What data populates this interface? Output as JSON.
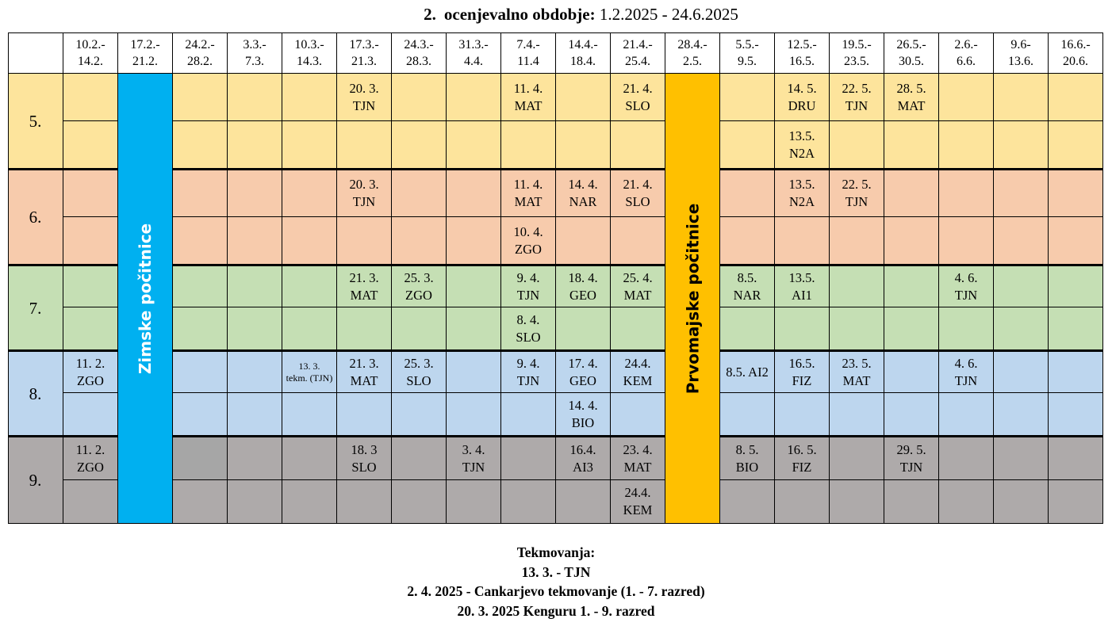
{
  "title": {
    "number": "2.",
    "label": "ocenjevalno obdobje:",
    "range": "1.2.2025 - 24.6.2025"
  },
  "weeks": [
    "10.2.-\n14.2.",
    "17.2.-\n21.2.",
    "24.2.-\n28.2.",
    "3.3.-\n7.3.",
    "10.3.-\n14.3.",
    "17.3.-\n21.3.",
    "24.3.-\n28.3.",
    "31.3.-\n4.4.",
    "7.4.-\n11.4",
    "14.4.-\n18.4.",
    "21.4.-\n25.4.",
    "28.4.-\n2.5.",
    "5.5.-\n9.5.",
    "12.5.-\n16.5.",
    "19.5.-\n23.5.",
    "26.5.-\n30.5.",
    "2.6.-\n6.6.",
    "9.6-\n13.6.",
    "16.6.-\n20.6."
  ],
  "vacations": {
    "winter": "Zimske počitnice",
    "mayday": "Prvomajske počitnice"
  },
  "colors": {
    "grade5": "#fde49c",
    "grade6": "#f7cbac",
    "grade7": "#c5dfb4",
    "grade8": "#bdd6ee",
    "grade9": "#aeaaaa",
    "winter": "#00b0f0",
    "mayday": "#ffc000"
  },
  "grades": [
    {
      "label": "5.",
      "color": "#fde49c",
      "rows": [
        {
          "5": "20. 3.\nTJN",
          "8": "11. 4.\nMAT",
          "10": "21. 4.\nSLO",
          "13": "14. 5.\nDRU",
          "14": "22. 5.\nTJN",
          "15": "28. 5.\nMAT"
        },
        {
          "13": "13.5.\nN2A"
        }
      ]
    },
    {
      "label": "6.",
      "color": "#f7cbac",
      "rows": [
        {
          "5": "20. 3.\nTJN",
          "8": "11. 4.\nMAT",
          "9": "14. 4.\nNAR",
          "10": "21. 4.\nSLO",
          "13": "13.5.\nN2A",
          "14": "22. 5.\nTJN"
        },
        {
          "8": "10. 4.\nZGO"
        }
      ]
    },
    {
      "label": "7.",
      "color": "#c5dfb4",
      "rows": [
        {
          "5": "21. 3.\nMAT",
          "6": "25. 3.\nZGO",
          "8": "9. 4.\nTJN",
          "9": "18. 4.\nGEO",
          "10": "25. 4.\nMAT",
          "12": "8.5.\nNAR",
          "13": "13.5.\nAI1",
          "16": "4. 6.\nTJN"
        },
        {
          "8": "8. 4.\nSLO"
        }
      ]
    },
    {
      "label": "8.",
      "color": "#bdd6ee",
      "rows": [
        {
          "0": "11. 2.\nZGO",
          "4": "13. 3.\ntekm. (TJN)",
          "5": "21. 3.\nMAT",
          "6": "25. 3.\nSLO",
          "8": "9. 4.\nTJN",
          "9": "17. 4.\nGEO",
          "10": "24.4.\nKEM",
          "12": "8.5. AI2",
          "13": "16.5.\nFIZ",
          "14": "23. 5.\nMAT",
          "16": "4. 6.\nTJN"
        },
        {
          "9": "14. 4.\nBIO"
        }
      ]
    },
    {
      "label": "9.",
      "color": "#aeaaaa",
      "rows": [
        {
          "0": "11. 2.\nZGO",
          "5": "18. 3\nSLO",
          "7": "3. 4.\nTJN",
          "9": "16.4.\nAI3",
          "10": "23. 4.\nMAT",
          "12": "8. 5.\nBIO",
          "13": "16. 5.\nFIZ",
          "15": "29. 5.\nTJN"
        },
        {
          "10": "24.4.\nKEM"
        }
      ]
    }
  ],
  "footer": {
    "heading": "Tekmovanja:",
    "lines": [
      "13. 3. - TJN",
      "2. 4. 2025 - Cankarjevo tekmovanje (1. - 7. razred)",
      "20. 3. 2025 Kenguru 1. - 9. razred"
    ]
  }
}
